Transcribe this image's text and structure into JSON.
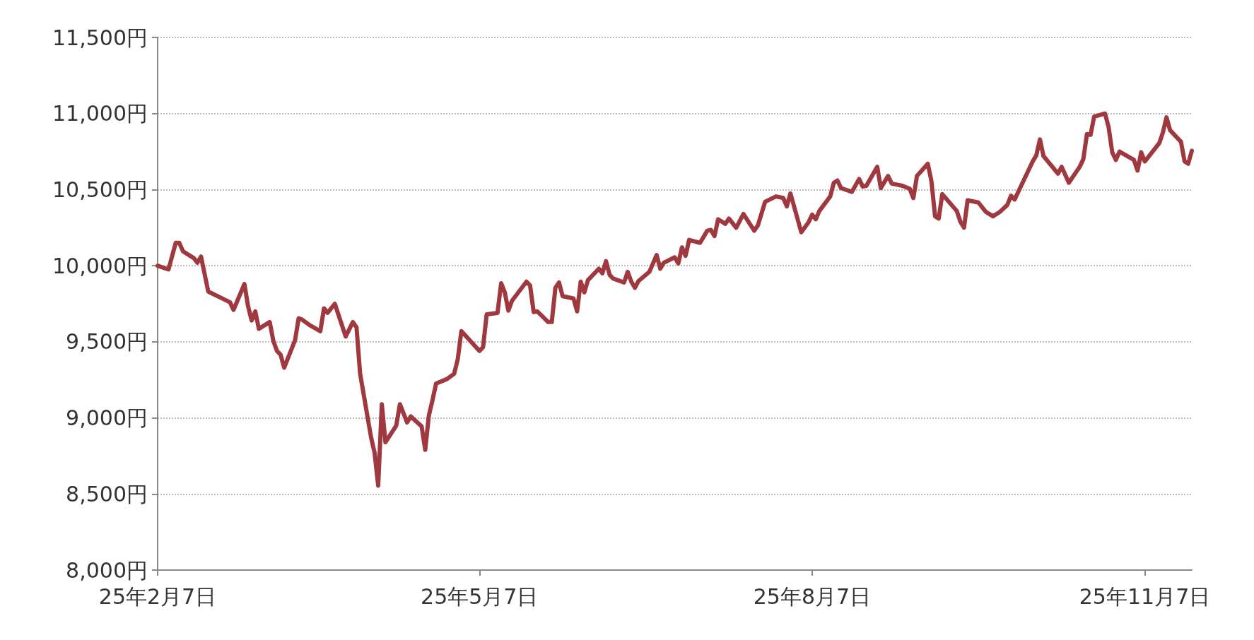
{
  "chart_data": {
    "type": "line",
    "x": [
      "--02-07",
      "--02-10",
      "--02-12",
      "--02-13",
      "--02-14",
      "--02-17",
      "--02-18",
      "--02-19",
      "--02-21",
      "--02-27",
      "--02-28",
      "--03-03",
      "--03-04",
      "--03-05",
      "--03-06",
      "--03-07",
      "--03-10",
      "--03-11",
      "--03-12",
      "--03-13",
      "--03-14",
      "--03-17",
      "--03-18",
      "--03-19",
      "--03-21",
      "--03-24",
      "--03-25",
      "--03-26",
      "--03-28",
      "--03-31",
      "--04-02",
      "--04-03",
      "--04-04",
      "--04-07",
      "--04-08",
      "--04-09",
      "--04-10",
      "--04-11",
      "--04-14",
      "--04-15",
      "--04-16",
      "--04-17",
      "--04-18",
      "--04-21",
      "--04-22",
      "--04-23",
      "--04-24",
      "--04-25",
      "--04-28",
      "--04-30",
      "--05-01",
      "--05-02",
      "--05-07",
      "--05-08",
      "--05-09",
      "--05-12",
      "--05-13",
      "--05-14",
      "--05-15",
      "--05-16",
      "--05-20",
      "--05-21",
      "--05-22",
      "--05-23",
      "--05-26",
      "--05-27",
      "--05-28",
      "--05-29",
      "--05-30",
      "--06-02",
      "--06-03",
      "--06-04",
      "--06-05",
      "--06-06",
      "--06-09",
      "--06-10",
      "--06-11",
      "--06-12",
      "--06-13",
      "--06-16",
      "--06-17",
      "--06-18",
      "--06-19",
      "--06-20",
      "--06-23",
      "--06-25",
      "--06-26",
      "--06-27",
      "--06-30",
      "--07-01",
      "--07-02",
      "--07-03",
      "--07-04",
      "--07-07",
      "--07-09",
      "--07-10",
      "--07-11",
      "--07-12",
      "--07-14",
      "--07-15",
      "--07-17",
      "--07-19",
      "--07-22",
      "--07-23",
      "--07-25",
      "--07-28",
      "--07-30",
      "--07-31",
      "--08-01",
      "--08-04",
      "--08-06",
      "--08-07",
      "--08-08",
      "--08-09",
      "--08-12",
      "--08-13",
      "--08-14",
      "--08-15",
      "--08-18",
      "--08-20",
      "--08-21",
      "--08-22",
      "--08-25",
      "--08-26",
      "--08-28",
      "--08-29",
      "--09-01",
      "--09-03",
      "--09-04",
      "--09-05",
      "--09-08",
      "--09-09",
      "--09-10",
      "--09-11",
      "--09-12",
      "--09-16",
      "--09-17",
      "--09-18",
      "--09-19",
      "--09-22",
      "--09-24",
      "--09-26",
      "--09-28",
      "--09-30",
      "--10-01",
      "--10-02",
      "--10-07",
      "--10-08",
      "--10-09",
      "--10-10",
      "--10-14",
      "--10-15",
      "--10-17",
      "--10-20",
      "--10-21",
      "--10-22",
      "--10-23",
      "--10-24",
      "--10-27",
      "--10-28",
      "--10-29",
      "--10-30",
      "--10-31",
      "--11-04",
      "--11-05",
      "--11-06",
      "--11-07",
      "--11-11",
      "--11-12",
      "--11-13",
      "--11-14",
      "--11-17",
      "--11-18",
      "--11-19",
      "--11-20"
    ],
    "series": [
      {
        "color": "#a0393f",
        "values": [
          10000,
          9975,
          10150,
          10150,
          10095,
          10050,
          10020,
          10060,
          9830,
          9760,
          9710,
          9880,
          9735,
          9640,
          9700,
          9585,
          9630,
          9505,
          9440,
          9415,
          9330,
          9510,
          9655,
          9645,
          9610,
          9570,
          9720,
          9690,
          9750,
          9535,
          9630,
          9595,
          9290,
          8875,
          8770,
          8555,
          9090,
          8840,
          8950,
          9090,
          9030,
          8970,
          9010,
          8945,
          8790,
          9015,
          9115,
          9225,
          9255,
          9290,
          9385,
          9570,
          9440,
          9465,
          9680,
          9690,
          9885,
          9825,
          9705,
          9770,
          9895,
          9870,
          9695,
          9700,
          9630,
          9630,
          9855,
          9890,
          9800,
          9785,
          9700,
          9895,
          9825,
          9905,
          9980,
          9950,
          10030,
          9940,
          9915,
          9890,
          9960,
          9895,
          9855,
          9900,
          9960,
          10070,
          9980,
          10020,
          10055,
          10015,
          10120,
          10065,
          10170,
          10150,
          10230,
          10235,
          10195,
          10305,
          10275,
          10310,
          10250,
          10340,
          10230,
          10265,
          10420,
          10455,
          10445,
          10390,
          10475,
          10220,
          10285,
          10335,
          10305,
          10360,
          10455,
          10545,
          10560,
          10510,
          10485,
          10570,
          10520,
          10525,
          10650,
          10510,
          10590,
          10540,
          10525,
          10505,
          10445,
          10590,
          10670,
          10555,
          10325,
          10310,
          10470,
          10360,
          10290,
          10250,
          10430,
          10415,
          10355,
          10325,
          10355,
          10400,
          10460,
          10435,
          10685,
          10725,
          10830,
          10720,
          10605,
          10650,
          10545,
          10650,
          10700,
          10865,
          10860,
          10980,
          11000,
          10910,
          10745,
          10695,
          10750,
          10695,
          10625,
          10745,
          10685,
          10805,
          10875,
          10975,
          10890,
          10815,
          10685,
          10670,
          10755
        ]
      }
    ],
    "xlim": [
      "--02-07",
      "--11-20"
    ],
    "xticks": [
      {
        "value": "--02-07",
        "label": "25年2月7日"
      },
      {
        "value": "--05-07",
        "label": "25年5月7日"
      },
      {
        "value": "--08-07",
        "label": "25年8月7日"
      },
      {
        "value": "--11-07",
        "label": "25年11月7日"
      }
    ],
    "ylim": [
      8000,
      11500
    ],
    "yticks": [
      {
        "value": 8000,
        "label": "8,000円"
      },
      {
        "value": 8500,
        "label": "8,500円"
      },
      {
        "value": 9000,
        "label": "9,000円"
      },
      {
        "value": 9500,
        "label": "9,500円"
      },
      {
        "value": 10000,
        "label": "10,000円"
      },
      {
        "value": 10500,
        "label": "10,500円"
      },
      {
        "value": 11000,
        "label": "11,000円"
      },
      {
        "value": 11500,
        "label": "11,500円"
      }
    ],
    "grid": "y",
    "marker": "none",
    "line_style": "solid"
  }
}
